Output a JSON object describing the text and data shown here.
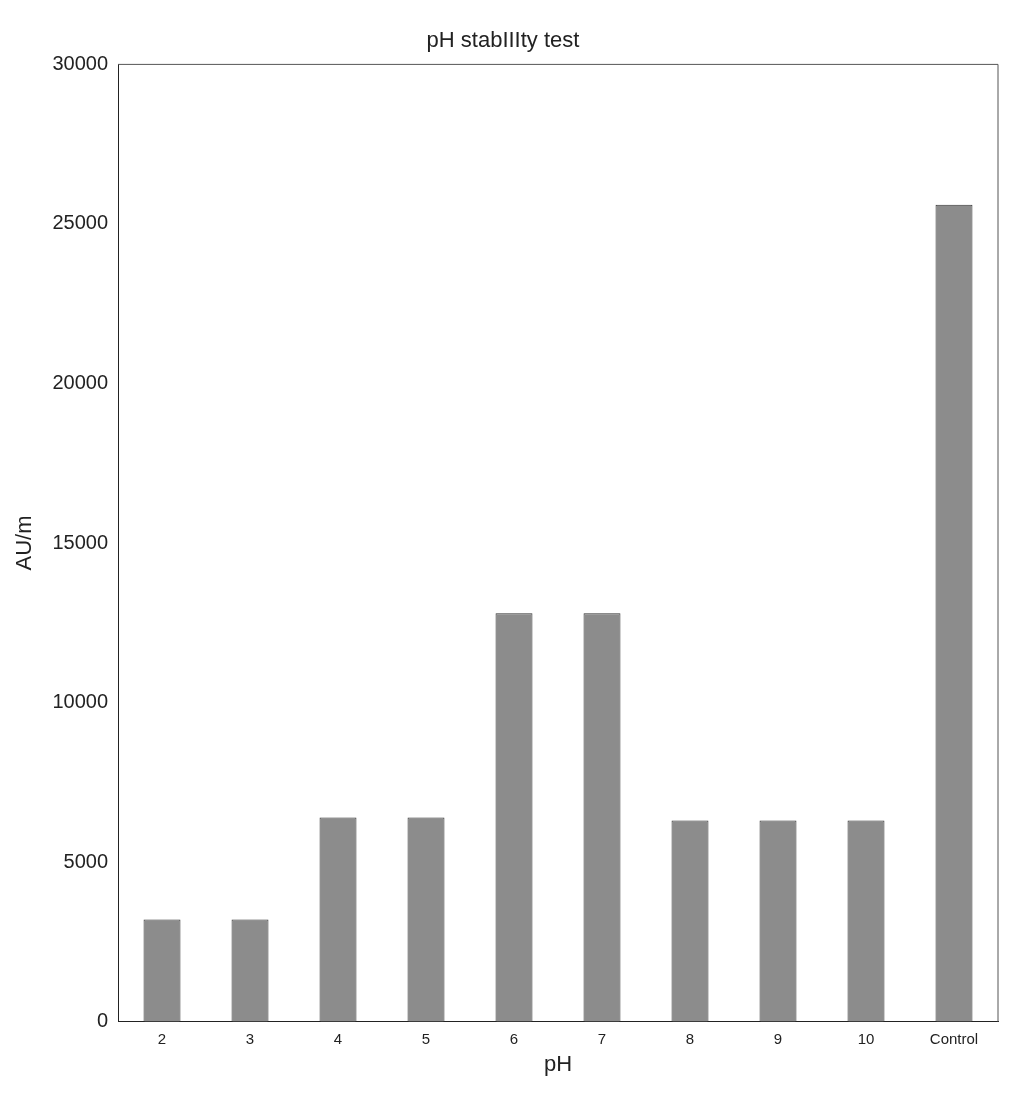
{
  "chart_data": {
    "type": "bar",
    "title": "pH stabIIIty test",
    "xlabel": "pH",
    "ylabel": "AU/m",
    "categories": [
      "2",
      "3",
      "4",
      "5",
      "6",
      "7",
      "8",
      "9",
      "10",
      "Control"
    ],
    "values": [
      3200,
      3200,
      6400,
      6400,
      12800,
      12800,
      6300,
      6300,
      6300,
      25600
    ],
    "color": "#8c8c8c",
    "ylim": [
      0,
      30000
    ],
    "yticks": [
      0,
      5000,
      10000,
      15000,
      20000,
      25000,
      30000
    ],
    "grid": false,
    "legend": false
  }
}
